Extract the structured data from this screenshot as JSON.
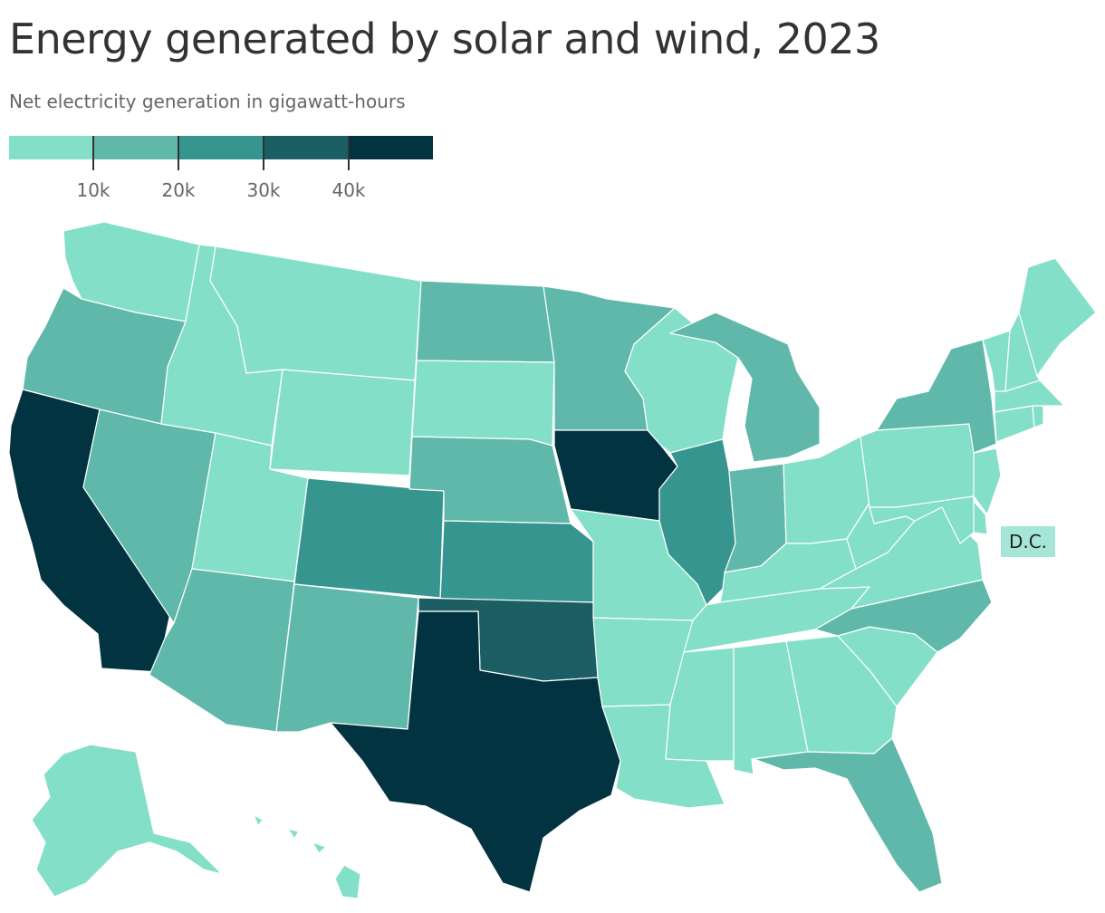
{
  "title": "Energy generated by solar and wind, 2023",
  "subtitle": "Net electricity generation in gigawatt-hours",
  "colors": {
    "bin1": "#84dfc8",
    "bin2": "#5fb8aa",
    "bin3": "#379590",
    "bin4": "#1b5e63",
    "bin5": "#023340"
  },
  "legend": {
    "ticks": [
      {
        "value": 10000,
        "label": "10k"
      },
      {
        "value": 20000,
        "label": "20k"
      },
      {
        "value": 30000,
        "label": "30k"
      },
      {
        "value": 40000,
        "label": "40k"
      }
    ],
    "bins": [
      "0-10k",
      "10k-20k",
      "20k-30k",
      "30k-40k",
      "40k+"
    ]
  },
  "dc_label": "D.C.",
  "states": {
    "WA": "bin1",
    "OR": "bin2",
    "CA": "bin5",
    "NV": "bin2",
    "ID": "bin1",
    "MT": "bin1",
    "WY": "bin1",
    "UT": "bin1",
    "AZ": "bin2",
    "CO": "bin3",
    "NM": "bin2",
    "ND": "bin2",
    "SD": "bin1",
    "NE": "bin2",
    "KS": "bin3",
    "OK": "bin4",
    "TX": "bin5",
    "MN": "bin2",
    "IA": "bin5",
    "MO": "bin1",
    "AR": "bin1",
    "LA": "bin1",
    "WI": "bin1",
    "IL": "bin3",
    "MI": "bin2",
    "IN": "bin2",
    "OH": "bin1",
    "KY": "bin1",
    "TN": "bin1",
    "MS": "bin1",
    "AL": "bin1",
    "GA": "bin1",
    "FL": "bin2",
    "SC": "bin1",
    "NC": "bin2",
    "VA": "bin1",
    "WV": "bin1",
    "PA": "bin1",
    "NY": "bin2",
    "NJ": "bin1",
    "DE": "bin1",
    "MD": "bin1",
    "CT": "bin1",
    "RI": "bin1",
    "MA": "bin1",
    "VT": "bin1",
    "NH": "bin1",
    "ME": "bin1",
    "AK": "bin1",
    "HI": "bin1",
    "DC": "bin1"
  }
}
